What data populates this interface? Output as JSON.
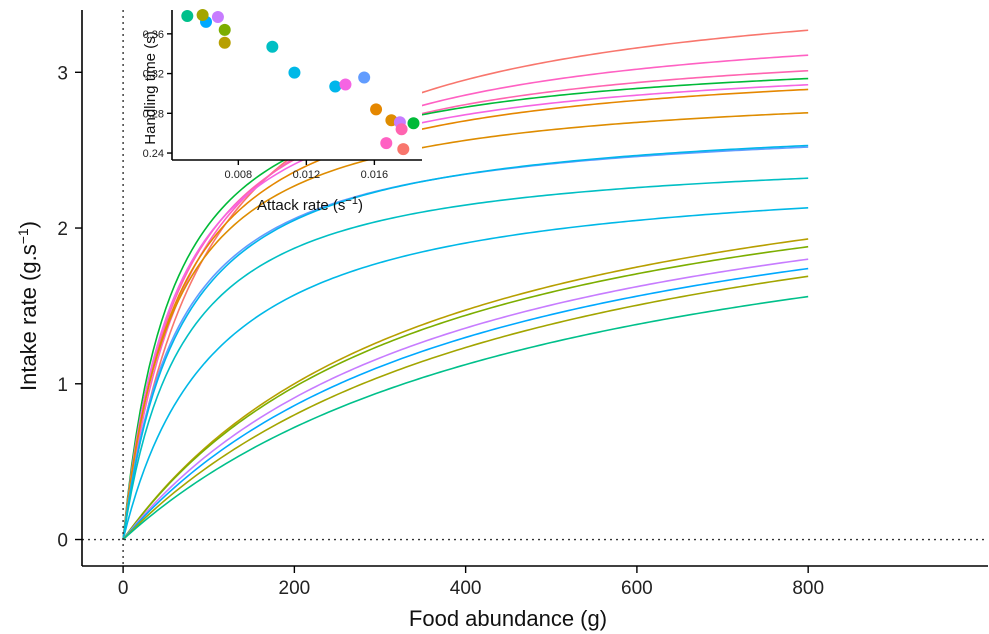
{
  "chart_data": [
    {
      "type": "line",
      "role": "main",
      "xlabel": "Food abundance (g)",
      "ylabel": "Intake rate (g.s",
      "ylabel_sup": "−1",
      "ylabel_close": ")",
      "xlim": [
        -48,
        1010
      ],
      "ylim": [
        -0.17,
        3.4
      ],
      "xticks": [
        0,
        200,
        400,
        600,
        800
      ],
      "yticks": [
        0,
        1,
        2,
        3
      ],
      "reference_lines": {
        "x": 0,
        "y": 0
      },
      "grid": false,
      "legend": "none",
      "x_range": [
        0,
        800
      ],
      "series": [
        {
          "color": "#F8766D",
          "values_at_x": [
            [
              0,
              0
            ],
            [
              100,
              1.8
            ],
            [
              200,
              2.47
            ],
            [
              400,
              2.98
            ],
            [
              800,
              3.27
            ]
          ]
        },
        {
          "color": "#FF61C3",
          "values_at_x": [
            [
              0,
              0
            ],
            [
              200,
              2.45
            ],
            [
              800,
              3.11
            ]
          ]
        },
        {
          "color": "#FF64B0",
          "values_at_x": [
            [
              0,
              0
            ],
            [
              200,
              2.44
            ],
            [
              800,
              3.01
            ]
          ]
        },
        {
          "color": "#00BA38",
          "values_at_x": [
            [
              0,
              0
            ],
            [
              200,
              2.47
            ],
            [
              800,
              2.96
            ]
          ]
        },
        {
          "color": "#F564E3",
          "values_at_x": [
            [
              0,
              0
            ],
            [
              200,
              2.41
            ],
            [
              800,
              2.92
            ]
          ]
        },
        {
          "color": "#E58700",
          "values_at_x": [
            [
              0,
              0
            ],
            [
              200,
              2.36
            ],
            [
              800,
              2.89
            ]
          ]
        },
        {
          "color": "#DE8C00",
          "values_at_x": [
            [
              0,
              0
            ],
            [
              200,
              2.27
            ],
            [
              800,
              2.74
            ]
          ]
        },
        {
          "color": "#619CFF",
          "values_at_x": [
            [
              0,
              0
            ],
            [
              200,
              2.06
            ],
            [
              800,
              2.52
            ]
          ]
        },
        {
          "color": "#00B6EB",
          "values_at_x": [
            [
              0,
              0
            ],
            [
              200,
              2.05
            ],
            [
              800,
              2.53
            ]
          ]
        },
        {
          "color": "#00BFC4",
          "values_at_x": [
            [
              0,
              0
            ],
            [
              200,
              1.87
            ],
            [
              800,
              2.32
            ]
          ]
        },
        {
          "color": "#00B8E7",
          "values_at_x": [
            [
              0,
              0
            ],
            [
              200,
              1.57
            ],
            [
              800,
              2.13
            ]
          ]
        },
        {
          "color": "#B79F00",
          "values_at_x": [
            [
              0,
              0
            ],
            [
              200,
              1.0
            ],
            [
              800,
              1.93
            ]
          ]
        },
        {
          "color": "#7CAE00",
          "values_at_x": [
            [
              0,
              0
            ],
            [
              200,
              0.98
            ],
            [
              800,
              1.88
            ]
          ]
        },
        {
          "color": "#C77CFF",
          "values_at_x": [
            [
              0,
              0
            ],
            [
              200,
              0.91
            ],
            [
              800,
              1.8
            ]
          ]
        },
        {
          "color": "#00A9FF",
          "values_at_x": [
            [
              0,
              0
            ],
            [
              200,
              0.86
            ],
            [
              800,
              1.74
            ]
          ]
        },
        {
          "color": "#A3A500",
          "values_at_x": [
            [
              0,
              0
            ],
            [
              200,
              0.8
            ],
            [
              800,
              1.69
            ]
          ]
        },
        {
          "color": "#00C08B",
          "values_at_x": [
            [
              0,
              0
            ],
            [
              200,
              0.72
            ],
            [
              800,
              1.56
            ]
          ]
        }
      ]
    },
    {
      "type": "scatter",
      "role": "inset",
      "xlabel": "Attack rate (s",
      "xlabel_sup": "−1",
      "xlabel_close": ")",
      "ylabel": "Handling time (s)",
      "xlim": [
        0.0041,
        0.0188
      ],
      "ylim": [
        0.233,
        0.384
      ],
      "xticks": [
        0.008,
        0.012,
        0.016
      ],
      "xtick_labels": [
        "0.008",
        "0.012",
        "0.016"
      ],
      "yticks": [
        0.24,
        0.28,
        0.32,
        0.36
      ],
      "ytick_labels": [
        "0.24",
        "0.28",
        "0.32",
        "0.36"
      ],
      "points": [
        {
          "x": 0.005,
          "y": 0.378,
          "color": "#00C08B"
        },
        {
          "x": 0.0061,
          "y": 0.372,
          "color": "#00A9FF"
        },
        {
          "x": 0.0059,
          "y": 0.379,
          "color": "#A3A500"
        },
        {
          "x": 0.0068,
          "y": 0.377,
          "color": "#C77CFF"
        },
        {
          "x": 0.0072,
          "y": 0.364,
          "color": "#7CAE00"
        },
        {
          "x": 0.0072,
          "y": 0.351,
          "color": "#B79F00"
        },
        {
          "x": 0.01,
          "y": 0.347,
          "color": "#00BFC4"
        },
        {
          "x": 0.0113,
          "y": 0.321,
          "color": "#00B8E7"
        },
        {
          "x": 0.0137,
          "y": 0.307,
          "color": "#00B6EB"
        },
        {
          "x": 0.0143,
          "y": 0.309,
          "color": "#F564E3"
        },
        {
          "x": 0.0154,
          "y": 0.316,
          "color": "#619CFF"
        },
        {
          "x": 0.0161,
          "y": 0.284,
          "color": "#E58700"
        },
        {
          "x": 0.017,
          "y": 0.273,
          "color": "#DE8C00"
        },
        {
          "x": 0.0175,
          "y": 0.271,
          "color": "#C77CFF"
        },
        {
          "x": 0.0183,
          "y": 0.27,
          "color": "#00BA38"
        },
        {
          "x": 0.0176,
          "y": 0.264,
          "color": "#FF64B0"
        },
        {
          "x": 0.0167,
          "y": 0.25,
          "color": "#FF61C3"
        },
        {
          "x": 0.0177,
          "y": 0.244,
          "color": "#F8766D"
        }
      ]
    }
  ]
}
